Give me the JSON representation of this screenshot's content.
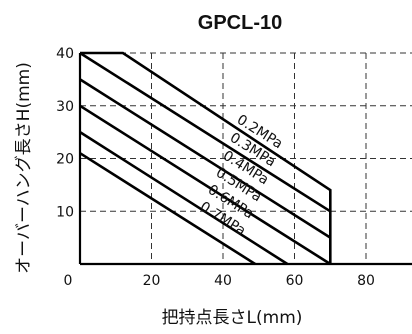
{
  "chart_data": {
    "type": "line",
    "title": "GPCL-10",
    "xlabel": "把持点長さL(mm)",
    "ylabel": "オーバーハング長さH(mm)",
    "xlim": [
      0,
      85
    ],
    "ylim": [
      0,
      40
    ],
    "xticks": [
      0,
      20,
      40,
      60,
      80
    ],
    "yticks": [
      10,
      20,
      30,
      40
    ],
    "grid": true,
    "series": [
      {
        "name": "0.2MPa",
        "points": [
          [
            0,
            40
          ],
          [
            12,
            40
          ],
          [
            70,
            14
          ],
          [
            70,
            0
          ]
        ]
      },
      {
        "name": "0.3MPa",
        "points": [
          [
            0,
            40
          ],
          [
            70,
            10
          ]
        ]
      },
      {
        "name": "0.4MPa",
        "points": [
          [
            0,
            35
          ],
          [
            70,
            5
          ]
        ]
      },
      {
        "name": "0.5MPa",
        "points": [
          [
            0,
            30
          ],
          [
            70,
            0
          ]
        ]
      },
      {
        "name": "0.6MPa",
        "points": [
          [
            0,
            25
          ],
          [
            58,
            0
          ]
        ]
      },
      {
        "name": "0.7MPa",
        "points": [
          [
            0,
            21
          ],
          [
            49,
            0
          ]
        ]
      }
    ]
  }
}
